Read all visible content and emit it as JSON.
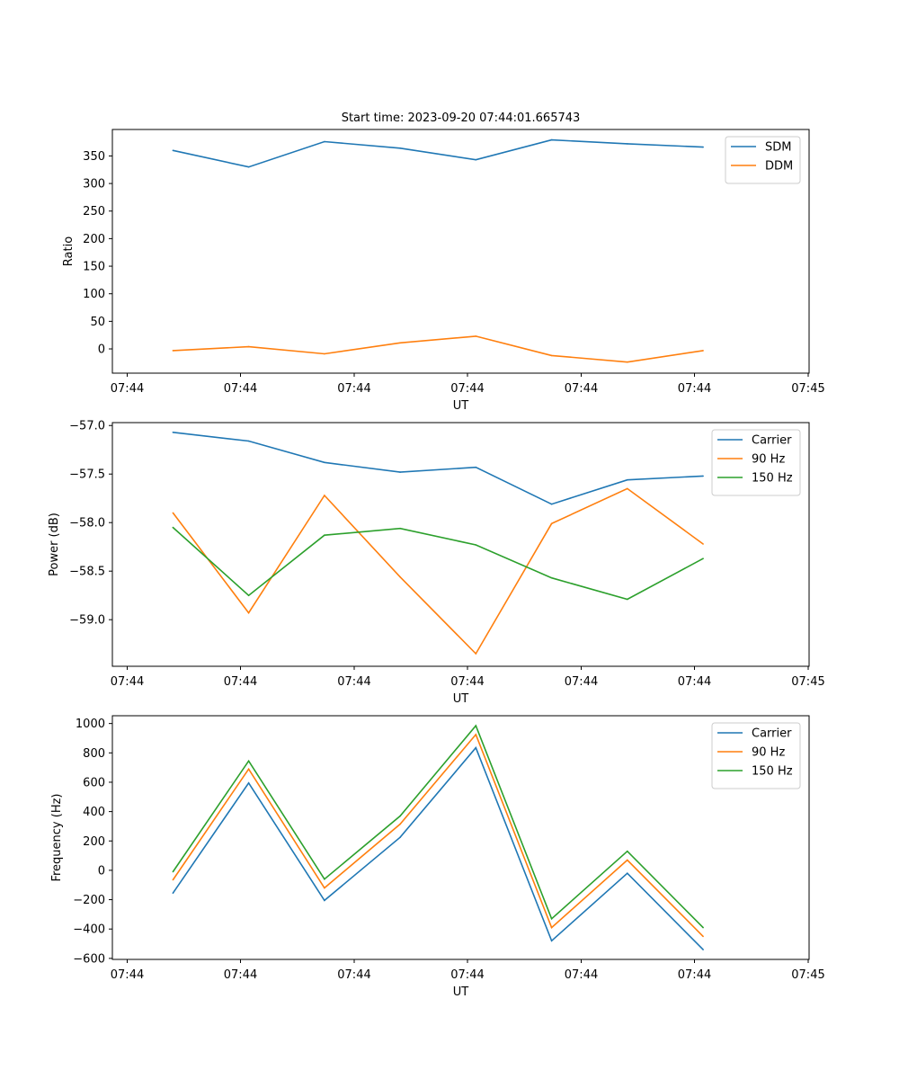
{
  "figure": {
    "title": "Start time: 2023-09-20 07:44:01.665743"
  },
  "chart_data": [
    {
      "type": "line",
      "title": "Start time: 2023-09-20 07:44:01.665743",
      "xlabel": "UT",
      "ylabel": "Ratio",
      "x_tick_labels": [
        "07:44",
        "07:44",
        "07:44",
        "07:44",
        "07:44",
        "07:44",
        "07:45"
      ],
      "y_ticks": [
        0,
        50,
        100,
        150,
        200,
        250,
        300,
        350
      ],
      "y_tick_labels": [
        "0",
        "50",
        "100",
        "150",
        "200",
        "250",
        "300",
        "350"
      ],
      "ylim": [
        -44,
        398
      ],
      "x_samples": [
        1,
        2,
        3,
        4,
        5,
        6,
        7,
        8
      ],
      "xlim": [
        0.2,
        9.4
      ],
      "legend": "top-right",
      "series": [
        {
          "name": "SDM",
          "color": "#1f77b4",
          "values": [
            360,
            330,
            376,
            364,
            343,
            379,
            372,
            366
          ]
        },
        {
          "name": "DDM",
          "color": "#ff7f0e",
          "values": [
            -3,
            4,
            -9,
            11,
            23,
            -12,
            -24,
            -3
          ]
        }
      ]
    },
    {
      "type": "line",
      "xlabel": "UT",
      "ylabel": "Power (dB)",
      "x_tick_labels": [
        "07:44",
        "07:44",
        "07:44",
        "07:44",
        "07:44",
        "07:44",
        "07:45"
      ],
      "y_ticks": [
        -57.0,
        -57.5,
        -58.0,
        -58.5,
        -59.0
      ],
      "y_tick_labels": [
        "−57.0",
        "−57.5",
        "−58.0",
        "−58.5",
        "−59.0"
      ],
      "ylim": [
        -59.48,
        -56.97
      ],
      "x_samples": [
        1,
        2,
        3,
        4,
        5,
        6,
        7,
        8
      ],
      "xlim": [
        0.2,
        9.4
      ],
      "legend": "top-right",
      "series": [
        {
          "name": "Carrier",
          "color": "#1f77b4",
          "values": [
            -57.07,
            -57.16,
            -57.38,
            -57.48,
            -57.43,
            -57.81,
            -57.56,
            -57.52
          ]
        },
        {
          "name": "90 Hz",
          "color": "#ff7f0e",
          "values": [
            -57.9,
            -58.93,
            -57.72,
            -58.56,
            -59.35,
            -58.01,
            -57.65,
            -58.22
          ]
        },
        {
          "name": "150 Hz",
          "color": "#2ca02c",
          "values": [
            -58.05,
            -58.75,
            -58.13,
            -58.06,
            -58.23,
            -58.57,
            -58.79,
            -58.37
          ]
        }
      ]
    },
    {
      "type": "line",
      "xlabel": "UT",
      "ylabel": "Frequency (Hz)",
      "x_tick_labels": [
        "07:44",
        "07:44",
        "07:44",
        "07:44",
        "07:44",
        "07:44",
        "07:45"
      ],
      "y_ticks": [
        -600,
        -400,
        -200,
        0,
        200,
        400,
        600,
        800,
        1000
      ],
      "y_tick_labels": [
        "−600",
        "−400",
        "−200",
        "0",
        "200",
        "400",
        "600",
        "800",
        "1000"
      ],
      "ylim": [
        -607,
        1053
      ],
      "x_samples": [
        1,
        2,
        3,
        4,
        5,
        6,
        7,
        8
      ],
      "xlim": [
        0.2,
        9.4
      ],
      "legend": "top-right",
      "series": [
        {
          "name": "Carrier",
          "color": "#1f77b4",
          "values": [
            -155,
            595,
            -205,
            225,
            835,
            -480,
            -20,
            -540
          ]
        },
        {
          "name": "90 Hz",
          "color": "#ff7f0e",
          "values": [
            -65,
            690,
            -120,
            315,
            925,
            -390,
            70,
            -450
          ]
        },
        {
          "name": "150 Hz",
          "color": "#2ca02c",
          "values": [
            -10,
            745,
            -60,
            370,
            985,
            -330,
            130,
            -390
          ]
        }
      ]
    }
  ]
}
